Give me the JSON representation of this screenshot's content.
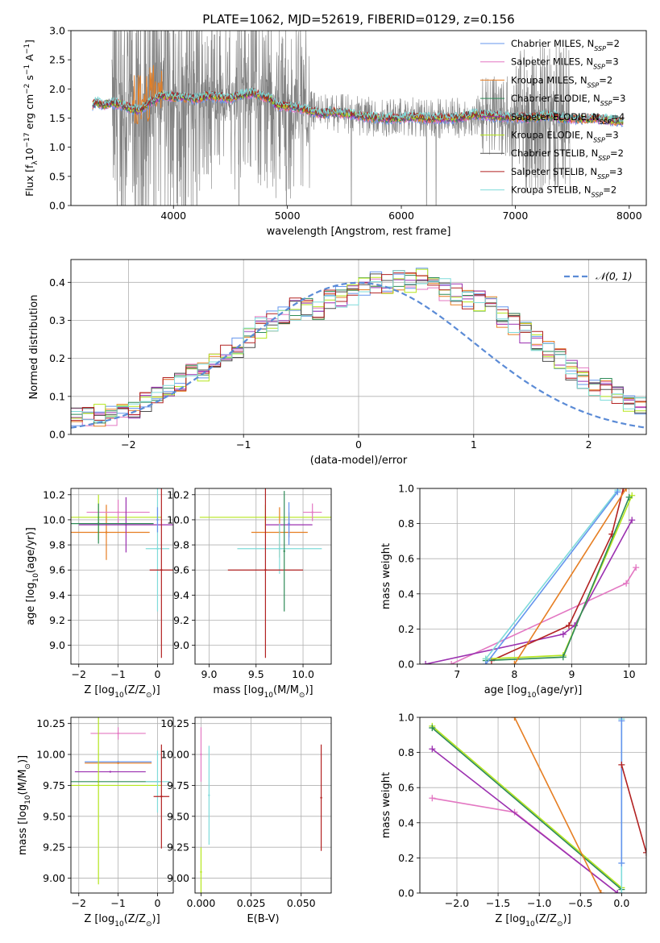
{
  "figure": {
    "title": "PLATE=1062, MJD=52619, FIBERID=0129, z=0.156"
  },
  "colors": {
    "data": "#808080",
    "chabrier_miles": "#6495ed",
    "salpeter_miles": "#e377c2",
    "kroupa_miles": "#e67e22",
    "chabrier_elodie": "#2e8b57",
    "salpeter_elodie": "#9b30b0",
    "kroupa_elodie": "#b5e61d",
    "chabrier_stelib": "#4d4d4d",
    "salpeter_stelib": "#b22222",
    "kroupa_stelib": "#7fdbda",
    "normal": "#5b8bd6"
  },
  "chart_data": [
    {
      "id": "spectrum",
      "type": "line",
      "xlabel": "wavelength [Angstrom, rest frame]",
      "ylabel_parts": [
        "Flux [f",
        "λ",
        "10",
        "−17",
        " erg cm",
        "−2",
        " s",
        "−1",
        " A",
        "−1",
        "]"
      ],
      "xlim": [
        3100,
        8150
      ],
      "ylim": [
        0,
        3.0
      ],
      "xticks": [
        4000,
        5000,
        6000,
        7000,
        8000
      ],
      "yticks": [
        0.0,
        0.5,
        1.0,
        1.5,
        2.0,
        2.5,
        3.0
      ],
      "grid": false,
      "legend_placement": "right",
      "legend": [
        {
          "main": "Chabrier MILES, N",
          "sub": "SSP",
          "tail": "=2",
          "color_key": "chabrier_miles"
        },
        {
          "main": "Salpeter MILES, N",
          "sub": "SSP",
          "tail": "=3",
          "color_key": "salpeter_miles"
        },
        {
          "main": "Kroupa MILES, N",
          "sub": "SSP",
          "tail": "=2",
          "color_key": "kroupa_miles"
        },
        {
          "main": "Chabrier ELODIE, N",
          "sub": "SSP",
          "tail": "=3",
          "color_key": "chabrier_elodie"
        },
        {
          "main": "Salpeter ELODIE, N",
          "sub": "SSP",
          "tail": "=4",
          "color_key": "salpeter_elodie"
        },
        {
          "main": "Kroupa ELODIE, N",
          "sub": "SSP",
          "tail": "=3",
          "color_key": "kroupa_elodie"
        },
        {
          "main": "Chabrier STELIB, N",
          "sub": "SSP",
          "tail": "=2",
          "color_key": "chabrier_stelib"
        },
        {
          "main": "Salpeter STELIB, N",
          "sub": "SSP",
          "tail": "=3",
          "color_key": "salpeter_stelib"
        },
        {
          "main": "Kroupa STELIB, N",
          "sub": "SSP",
          "tail": "=2",
          "color_key": "kroupa_stelib"
        }
      ],
      "model_continuum": {
        "x": [
          3290,
          3320,
          3380,
          3450,
          3520,
          3600,
          3700,
          3800,
          3900,
          4000,
          4100,
          4200,
          4300,
          4400,
          4500,
          4600,
          4700,
          4800,
          4860,
          4900,
          5000,
          5100,
          5200,
          5300,
          5400,
          5500,
          5600,
          5700,
          5800,
          5900,
          6000,
          6100,
          6200,
          6300,
          6400,
          6500,
          6600,
          6700,
          6800,
          6900,
          7000,
          7100,
          7200,
          7300,
          7400,
          7500,
          7600,
          7700,
          7800,
          7900,
          7950
        ],
        "y": [
          1.72,
          1.78,
          1.72,
          1.76,
          1.74,
          1.68,
          1.62,
          1.78,
          1.88,
          1.86,
          1.85,
          1.83,
          1.88,
          1.86,
          1.84,
          1.9,
          1.93,
          1.86,
          1.82,
          1.72,
          1.7,
          1.68,
          1.62,
          1.57,
          1.6,
          1.58,
          1.55,
          1.52,
          1.5,
          1.5,
          1.5,
          1.52,
          1.5,
          1.49,
          1.5,
          1.5,
          1.55,
          1.56,
          1.53,
          1.52,
          1.51,
          1.5,
          1.52,
          1.55,
          1.5,
          1.49,
          1.48,
          1.5,
          1.47,
          1.45,
          1.44
        ]
      },
      "data_range": [
        3460,
        7480
      ]
    },
    {
      "id": "residual_hist",
      "type": "line",
      "xlabel": "(data-model)/error",
      "ylabel": "Normed distribution",
      "xlim": [
        -2.5,
        2.5
      ],
      "ylim": [
        0,
        0.46
      ],
      "xticks": [
        -2,
        -1,
        0,
        1,
        2
      ],
      "yticks": [
        0.0,
        0.1,
        0.2,
        0.3,
        0.4
      ],
      "grid": true,
      "legend_placement": "top-right",
      "legend": [
        {
          "label": "𝒩(0, 1)",
          "color_key": "normal"
        }
      ],
      "bin_edges_start": -2.5,
      "bin_width": 0.1,
      "base_hist": [
        0.04,
        0.045,
        0.05,
        0.045,
        0.06,
        0.07,
        0.09,
        0.1,
        0.12,
        0.14,
        0.16,
        0.17,
        0.19,
        0.21,
        0.23,
        0.25,
        0.28,
        0.3,
        0.32,
        0.33,
        0.34,
        0.33,
        0.35,
        0.36,
        0.37,
        0.39,
        0.4,
        0.4,
        0.41,
        0.4,
        0.41,
        0.39,
        0.38,
        0.37,
        0.36,
        0.35,
        0.34,
        0.31,
        0.29,
        0.27,
        0.25,
        0.22,
        0.2,
        0.17,
        0.15,
        0.13,
        0.12,
        0.1,
        0.09,
        0.08
      ],
      "normal_curve": {
        "mean": 0,
        "sigma": 1
      }
    },
    {
      "id": "age_vs_Z",
      "type": "scatter",
      "xlabel_parts": [
        "Z [log",
        "10",
        "(Z/Z",
        "⊙",
        ")]"
      ],
      "ylabel_parts": [
        "age  [log",
        "10",
        "(age/yr)]"
      ],
      "xlim": [
        -2.2,
        0.4
      ],
      "ylim": [
        8.85,
        10.25
      ],
      "xticks": [
        -2,
        -1,
        0
      ],
      "yticks": [
        9.0,
        9.2,
        9.4,
        9.6,
        9.8,
        10.0,
        10.2
      ],
      "grid": true,
      "points": [
        {
          "x": -1.5,
          "y": 10.02,
          "xerr": 1.6,
          "yerr": 0.18,
          "color_key": "kroupa_elodie"
        },
        {
          "x": -1.3,
          "y": 9.9,
          "xerr": 1.1,
          "yerr": 0.22,
          "color_key": "kroupa_miles"
        },
        {
          "x": -1.0,
          "y": 10.06,
          "xerr": 0.8,
          "yerr": 0.1,
          "color_key": "salpeter_miles"
        },
        {
          "x": -0.8,
          "y": 9.96,
          "xerr": 1.2,
          "yerr": 0.22,
          "color_key": "salpeter_elodie"
        },
        {
          "x": -1.5,
          "y": 9.97,
          "xerr": 1.4,
          "yerr": 0.16,
          "color_key": "chabrier_elodie"
        },
        {
          "x": 0.0,
          "y": 9.77,
          "xerr": 0.3,
          "yerr": 0.5,
          "color_key": "kroupa_stelib"
        },
        {
          "x": 0.1,
          "y": 9.6,
          "xerr": 0.3,
          "yerr": 0.7,
          "color_key": "salpeter_stelib"
        },
        {
          "x": 0.0,
          "y": 10.0,
          "xerr": 0.0,
          "yerr": 0.1,
          "color_key": "chabrier_miles"
        }
      ]
    },
    {
      "id": "age_vs_mass",
      "type": "scatter",
      "xlabel_parts": [
        "mass [log",
        "10",
        "(M/M",
        "⊙",
        ")]"
      ],
      "ylabel": "",
      "xlim": [
        8.85,
        10.3
      ],
      "ylim": [
        8.85,
        10.25
      ],
      "xticks": [
        9.0,
        9.5,
        10.0
      ],
      "yticks": [
        9.0,
        9.2,
        9.4,
        9.6,
        9.8,
        10.0,
        10.2
      ],
      "grid": true,
      "points": [
        {
          "x": 9.6,
          "y": 10.02,
          "xerr": 0.7,
          "yerr": 0.1,
          "color_key": "kroupa_elodie"
        },
        {
          "x": 9.75,
          "y": 9.9,
          "xerr": 0.3,
          "yerr": 0.2,
          "color_key": "kroupa_miles"
        },
        {
          "x": 10.1,
          "y": 10.06,
          "xerr": 0.1,
          "yerr": 0.07,
          "color_key": "salpeter_miles"
        },
        {
          "x": 9.85,
          "y": 9.96,
          "xerr": 0.25,
          "yerr": 0.1,
          "color_key": "salpeter_elodie"
        },
        {
          "x": 9.75,
          "y": 9.77,
          "xerr": 0.45,
          "yerr": 0.2,
          "color_key": "kroupa_stelib"
        },
        {
          "x": 9.6,
          "y": 9.6,
          "xerr": 0.4,
          "yerr": 0.7,
          "color_key": "salpeter_stelib"
        },
        {
          "x": 9.8,
          "y": 9.75,
          "xerr": 0.0,
          "yerr": 0.48,
          "color_key": "chabrier_elodie"
        },
        {
          "x": 9.85,
          "y": 9.97,
          "xerr": 0.0,
          "yerr": 0.17,
          "color_key": "chabrier_miles"
        }
      ]
    },
    {
      "id": "cumulative_age",
      "type": "line",
      "xlabel_parts": [
        "age  [log",
        "10",
        "(age/yr)]"
      ],
      "ylabel": "mass weight",
      "xlim": [
        6.35,
        10.3
      ],
      "ylim": [
        0,
        1.0
      ],
      "xticks": [
        7,
        8,
        9,
        10
      ],
      "yticks": [
        0.0,
        0.2,
        0.4,
        0.6,
        0.8,
        1.0
      ],
      "grid": true,
      "series": [
        {
          "color_key": "salpeter_miles",
          "x": [
            6.9,
            9.95,
            10.12
          ],
          "y": [
            0.0,
            0.46,
            0.55
          ]
        },
        {
          "color_key": "salpeter_elodie",
          "x": [
            6.45,
            8.85,
            9.05,
            10.05
          ],
          "y": [
            0.0,
            0.17,
            0.22,
            0.82
          ]
        },
        {
          "color_key": "salpeter_stelib",
          "x": [
            7.6,
            8.95,
            9.7,
            9.9
          ],
          "y": [
            0.02,
            0.22,
            0.74,
            1.0
          ]
        },
        {
          "color_key": "kroupa_elodie",
          "x": [
            7.5,
            8.85,
            10.05
          ],
          "y": [
            0.03,
            0.05,
            0.96
          ]
        },
        {
          "color_key": "chabrier_elodie",
          "x": [
            7.5,
            8.85,
            10.0
          ],
          "y": [
            0.02,
            0.04,
            0.95
          ]
        },
        {
          "color_key": "kroupa_miles",
          "x": [
            8.0,
            9.95
          ],
          "y": [
            0.0,
            1.0
          ]
        },
        {
          "color_key": "kroupa_stelib",
          "x": [
            7.5,
            9.8
          ],
          "y": [
            0.03,
            0.99
          ]
        },
        {
          "color_key": "chabrier_miles",
          "x": [
            7.5,
            9.8
          ],
          "y": [
            0.0,
            0.98
          ]
        }
      ]
    },
    {
      "id": "mass_vs_Z",
      "type": "scatter",
      "xlabel_parts": [
        "Z [log",
        "10",
        "(Z/Z",
        "⊙",
        ")]"
      ],
      "ylabel_parts": [
        "mass [log",
        "10",
        "(M/M",
        "⊙",
        ")]"
      ],
      "xlim": [
        -2.2,
        0.4
      ],
      "ylim": [
        8.88,
        10.3
      ],
      "xticks": [
        -2,
        -1,
        0
      ],
      "yticks": [
        9.0,
        9.25,
        9.5,
        9.75,
        10.0,
        10.25
      ],
      "grid": true,
      "points": [
        {
          "x": -1.0,
          "y": 10.17,
          "xerr": 0.7,
          "yerr": 0.05,
          "color_key": "salpeter_miles"
        },
        {
          "x": -1.0,
          "y": 9.94,
          "xerr": 0.85,
          "yerr": 0.0,
          "color_key": "chabrier_miles"
        },
        {
          "x": -1.0,
          "y": 9.93,
          "xerr": 0.85,
          "yerr": 0.0,
          "color_key": "kroupa_miles"
        },
        {
          "x": -1.2,
          "y": 9.86,
          "xerr": 0.9,
          "yerr": 0.0,
          "color_key": "salpeter_elodie"
        },
        {
          "x": -1.5,
          "y": 9.78,
          "xerr": 1.6,
          "yerr": 0.0,
          "color_key": "chabrier_elodie"
        },
        {
          "x": -1.5,
          "y": 9.75,
          "xerr": 1.6,
          "yerr": 0.8,
          "color_key": "kroupa_elodie"
        },
        {
          "x": 0.0,
          "y": 9.78,
          "xerr": 0.3,
          "yerr": 0.25,
          "color_key": "kroupa_stelib"
        },
        {
          "x": 0.1,
          "y": 9.66,
          "xerr": 0.2,
          "yerr": 0.42,
          "color_key": "salpeter_stelib"
        }
      ]
    },
    {
      "id": "mass_vs_ebv",
      "type": "scatter",
      "xlabel": "E(B-V)",
      "ylabel": "",
      "xlim": [
        -0.003,
        0.065
      ],
      "ylim": [
        8.88,
        10.3
      ],
      "xticks": [
        0.0,
        0.025,
        0.05
      ],
      "tick_labels": [
        "0.000",
        "0.025",
        "0.050"
      ],
      "yticks": [
        9.0,
        9.25,
        9.5,
        9.75,
        10.0,
        10.25
      ],
      "grid": true,
      "points": [
        {
          "x": 0.0,
          "y": 10.0,
          "xerr": 0.0,
          "yerr": 0.22,
          "color_key": "salpeter_miles"
        },
        {
          "x": 0.0,
          "y": 9.05,
          "xerr": 0.0,
          "yerr": 0.2,
          "color_key": "kroupa_elodie"
        },
        {
          "x": 0.004,
          "y": 9.67,
          "xerr": 0.0,
          "yerr": 0.4,
          "color_key": "kroupa_stelib"
        },
        {
          "x": 0.06,
          "y": 9.65,
          "xerr": 0.0,
          "yerr": 0.43,
          "color_key": "salpeter_stelib"
        }
      ]
    },
    {
      "id": "cumulative_Z",
      "type": "line",
      "xlabel_parts": [
        "Z [log",
        "10",
        "(Z/Z",
        "⊙",
        ")]"
      ],
      "ylabel": "mass weight",
      "xlim": [
        -2.45,
        0.3
      ],
      "ylim": [
        0,
        1.0
      ],
      "xticks": [
        -2.0,
        -1.5,
        -1.0,
        -0.5,
        0.0
      ],
      "yticks": [
        0.0,
        0.2,
        0.4,
        0.6,
        0.8,
        1.0
      ],
      "grid": true,
      "series": [
        {
          "color_key": "salpeter_miles",
          "x": [
            -2.3,
            -1.3,
            -0.05
          ],
          "y": [
            0.54,
            0.46,
            0.0
          ]
        },
        {
          "color_key": "salpeter_elodie",
          "x": [
            -2.3,
            -0.05
          ],
          "y": [
            0.82,
            0.0
          ]
        },
        {
          "color_key": "kroupa_elodie",
          "x": [
            -2.3,
            0.0
          ],
          "y": [
            0.95,
            0.03
          ]
        },
        {
          "color_key": "chabrier_elodie",
          "x": [
            -2.3,
            0.0
          ],
          "y": [
            0.94,
            0.02
          ]
        },
        {
          "color_key": "kroupa_miles",
          "x": [
            -1.3,
            -0.25
          ],
          "y": [
            1.0,
            0.0
          ]
        },
        {
          "color_key": "kroupa_stelib",
          "x": [
            0.0,
            0.0
          ],
          "y": [
            0.0,
            0.99
          ]
        },
        {
          "color_key": "chabrier_miles",
          "x": [
            0.0,
            0.0
          ],
          "y": [
            0.17,
            0.98
          ]
        },
        {
          "color_key": "salpeter_stelib",
          "x": [
            0.0,
            0.3
          ],
          "y": [
            0.73,
            0.23
          ]
        }
      ]
    }
  ]
}
